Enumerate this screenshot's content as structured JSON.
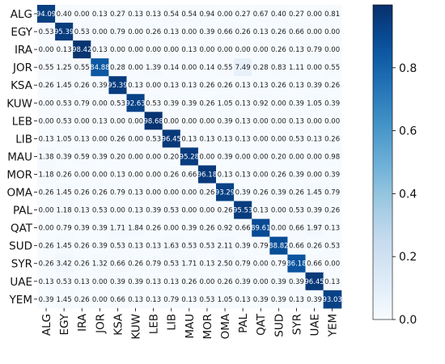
{
  "chart_data": {
    "type": "heatmap",
    "title": "",
    "xlabel": "",
    "ylabel": "",
    "rows": [
      "ALG",
      "EGY",
      "IRA",
      "JOR",
      "KSA",
      "KUW",
      "LEB",
      "LIB",
      "MAU",
      "MOR",
      "OMA",
      "PAL",
      "QAT",
      "SUD",
      "SYR",
      "UAE",
      "YEM"
    ],
    "cols": [
      "ALG",
      "EGY",
      "IRA",
      "JOR",
      "KSA",
      "KUW",
      "LEB",
      "LIB",
      "MAU",
      "MOR",
      "OMA",
      "PAL",
      "QAT",
      "SUD",
      "SYR",
      "UAE",
      "YEM"
    ],
    "values": [
      [
        "94.09",
        "0.40",
        "0.00",
        "0.13",
        "0.27",
        "0.13",
        "0.13",
        "0.54",
        "0.54",
        "0.94",
        "0.00",
        "0.27",
        "0.67",
        "0.40",
        "0.27",
        "0.00",
        "0.81"
      ],
      [
        "0.53",
        "95.39",
        "0.53",
        "0.00",
        "0.79",
        "0.00",
        "0.26",
        "0.13",
        "0.00",
        "0.39",
        "0.66",
        "0.26",
        "0.13",
        "0.26",
        "0.66",
        "0.00",
        "0.00"
      ],
      [
        "0.00",
        "0.13",
        "98.42",
        "0.13",
        "0.00",
        "0.00",
        "0.00",
        "0.00",
        "0.13",
        "0.00",
        "0.00",
        "0.00",
        "0.00",
        "0.26",
        "0.13",
        "0.79",
        "0.00"
      ],
      [
        "0.55",
        "1.25",
        "0.55",
        "84.88",
        "0.28",
        "0.00",
        "1.39",
        "0.14",
        "0.00",
        "0.14",
        "0.55",
        "7.49",
        "0.28",
        "0.83",
        "1.11",
        "0.00",
        "0.55"
      ],
      [
        "0.26",
        "1.45",
        "0.26",
        "0.39",
        "95.39",
        "0.13",
        "0.00",
        "0.13",
        "0.13",
        "0.26",
        "0.26",
        "0.13",
        "0.13",
        "0.26",
        "0.13",
        "0.39",
        "0.26"
      ],
      [
        "0.00",
        "0.53",
        "0.79",
        "0.00",
        "0.53",
        "92.63",
        "0.53",
        "0.39",
        "0.39",
        "0.26",
        "1.05",
        "0.13",
        "0.92",
        "0.00",
        "0.39",
        "1.05",
        "0.39"
      ],
      [
        "0.00",
        "0.53",
        "0.00",
        "0.13",
        "0.00",
        "0.00",
        "98.68",
        "0.00",
        "0.00",
        "0.00",
        "0.39",
        "0.13",
        "0.00",
        "0.00",
        "0.13",
        "0.00",
        "0.00"
      ],
      [
        "0.13",
        "1.05",
        "0.13",
        "0.00",
        "0.26",
        "0.00",
        "0.53",
        "96.45",
        "0.13",
        "0.13",
        "0.13",
        "0.13",
        "0.00",
        "0.00",
        "0.53",
        "0.13",
        "0.26"
      ],
      [
        "1.38",
        "0.39",
        "0.59",
        "0.39",
        "0.20",
        "0.00",
        "0.00",
        "0.20",
        "95.28",
        "0.00",
        "0.39",
        "0.00",
        "0.00",
        "0.20",
        "0.00",
        "0.00",
        "0.98"
      ],
      [
        "1.18",
        "0.26",
        "0.00",
        "0.00",
        "0.13",
        "0.00",
        "0.00",
        "0.26",
        "0.66",
        "96.18",
        "0.13",
        "0.13",
        "0.00",
        "0.26",
        "0.39",
        "0.00",
        "0.39"
      ],
      [
        "0.26",
        "1.45",
        "0.26",
        "0.26",
        "0.79",
        "0.13",
        "0.00",
        "0.00",
        "0.00",
        "0.26",
        "93.29",
        "0.39",
        "0.26",
        "0.39",
        "0.26",
        "1.45",
        "0.79"
      ],
      [
        "0.00",
        "1.18",
        "0.13",
        "0.53",
        "0.00",
        "0.13",
        "0.39",
        "0.53",
        "0.00",
        "0.00",
        "0.26",
        "95.53",
        "0.13",
        "0.00",
        "0.53",
        "0.39",
        "0.26"
      ],
      [
        "0.00",
        "0.79",
        "0.39",
        "0.39",
        "1.71",
        "1.84",
        "0.26",
        "0.00",
        "0.39",
        "0.26",
        "0.92",
        "0.66",
        "89.61",
        "0.00",
        "0.66",
        "1.97",
        "0.13"
      ],
      [
        "0.26",
        "1.45",
        "0.26",
        "0.39",
        "0.53",
        "0.13",
        "0.13",
        "1.63",
        "0.53",
        "0.53",
        "2.11",
        "0.39",
        "0.79",
        "88.82",
        "0.66",
        "0.26",
        "0.53"
      ],
      [
        "0.26",
        "3.42",
        "0.26",
        "1.32",
        "0.66",
        "0.26",
        "0.79",
        "0.53",
        "1.71",
        "0.13",
        "2.50",
        "0.79",
        "0.00",
        "0.79",
        "86.18",
        "0.66",
        "0.00"
      ],
      [
        "0.13",
        "0.53",
        "0.13",
        "0.00",
        "0.39",
        "0.39",
        "0.13",
        "0.13",
        "0.26",
        "0.00",
        "0.26",
        "0.39",
        "0.00",
        "0.39",
        "0.39",
        "96.45",
        "0.13"
      ],
      [
        "0.39",
        "1.45",
        "0.26",
        "0.00",
        "0.66",
        "0.13",
        "0.13",
        "0.79",
        "0.13",
        "0.53",
        "1.05",
        "0.13",
        "0.39",
        "0.39",
        "0.13",
        "0.39",
        "93.03"
      ]
    ],
    "value_scale": "fraction = value / 100",
    "colorbar": {
      "range": [
        0,
        1
      ],
      "ticks": [
        "0.0",
        "0.2",
        "0.4",
        "0.6",
        "0.8"
      ],
      "low_color": "#f7fbff",
      "high_color": "#08306b"
    },
    "grid": false,
    "legend": "colorbar-right"
  }
}
